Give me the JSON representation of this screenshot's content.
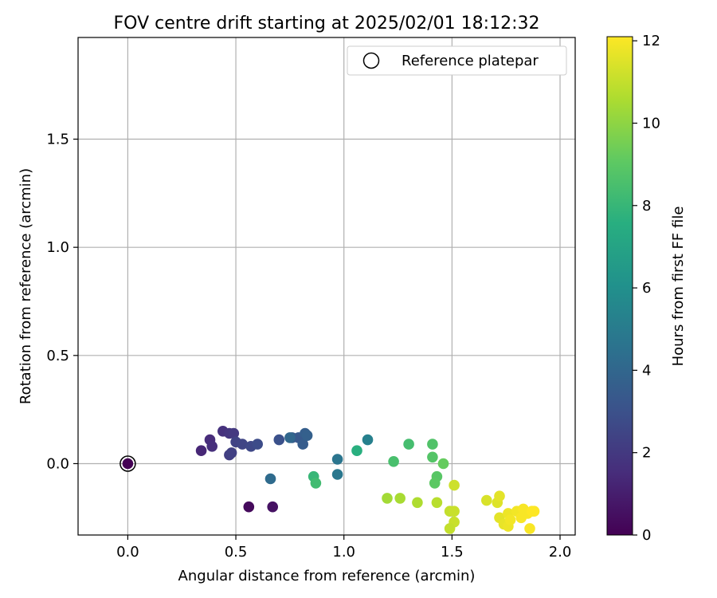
{
  "chart_data": {
    "type": "scatter",
    "title": "FOV centre drift starting at 2025/02/01 18:12:32",
    "xlabel": "Angular distance from reference (arcmin)",
    "ylabel": "Rotation from reference (arcmin)",
    "xlim": [
      -0.23,
      2.07
    ],
    "ylim": [
      -0.33,
      1.97
    ],
    "xticks": [
      0.0,
      0.5,
      1.0,
      1.5,
      2.0
    ],
    "xtick_labels": [
      "0.0",
      "0.5",
      "1.0",
      "1.5",
      "2.0"
    ],
    "yticks": [
      0.0,
      0.5,
      1.0,
      1.5
    ],
    "ytick_labels": [
      "0.0",
      "0.5",
      "1.0",
      "1.5"
    ],
    "grid": true,
    "legend": {
      "position": "top-right",
      "entries": [
        "Reference platepar"
      ]
    },
    "colorbar": {
      "label": "Hours from first FF file",
      "colormap": "viridis",
      "range": [
        0,
        12.1
      ],
      "ticks": [
        0,
        2,
        4,
        6,
        8,
        10,
        12
      ],
      "tick_labels": [
        "0",
        "2",
        "4",
        "6",
        "8",
        "10",
        "12"
      ]
    },
    "reference_point": {
      "x": 0.0,
      "y": 0.0
    },
    "points": [
      {
        "x": 0.0,
        "y": 0.0,
        "t": 0.0
      },
      {
        "x": 0.56,
        "y": -0.2,
        "t": 0.3
      },
      {
        "x": 0.67,
        "y": -0.2,
        "t": 0.6
      },
      {
        "x": 0.34,
        "y": 0.06,
        "t": 1.3
      },
      {
        "x": 0.38,
        "y": 0.11,
        "t": 1.5
      },
      {
        "x": 0.39,
        "y": 0.08,
        "t": 1.6
      },
      {
        "x": 0.44,
        "y": 0.15,
        "t": 1.7
      },
      {
        "x": 0.47,
        "y": 0.14,
        "t": 1.9
      },
      {
        "x": 0.49,
        "y": 0.14,
        "t": 2.0
      },
      {
        "x": 0.47,
        "y": 0.04,
        "t": 2.2
      },
      {
        "x": 0.48,
        "y": 0.05,
        "t": 2.3
      },
      {
        "x": 0.5,
        "y": 0.1,
        "t": 2.4
      },
      {
        "x": 0.53,
        "y": 0.09,
        "t": 2.5
      },
      {
        "x": 0.57,
        "y": 0.08,
        "t": 2.6
      },
      {
        "x": 0.6,
        "y": 0.09,
        "t": 2.8
      },
      {
        "x": 0.7,
        "y": 0.11,
        "t": 3.0
      },
      {
        "x": 0.76,
        "y": 0.12,
        "t": 3.4
      },
      {
        "x": 0.79,
        "y": 0.12,
        "t": 3.3
      },
      {
        "x": 0.81,
        "y": 0.09,
        "t": 3.5
      },
      {
        "x": 0.82,
        "y": 0.14,
        "t": 3.6
      },
      {
        "x": 0.83,
        "y": 0.13,
        "t": 3.7
      },
      {
        "x": 0.75,
        "y": 0.12,
        "t": 4.0
      },
      {
        "x": 0.66,
        "y": -0.07,
        "t": 4.2
      },
      {
        "x": 0.97,
        "y": 0.02,
        "t": 4.7
      },
      {
        "x": 0.97,
        "y": -0.05,
        "t": 4.8
      },
      {
        "x": 1.11,
        "y": 0.11,
        "t": 5.2
      },
      {
        "x": 1.06,
        "y": 0.06,
        "t": 7.6
      },
      {
        "x": 0.86,
        "y": -0.06,
        "t": 8.0
      },
      {
        "x": 0.87,
        "y": -0.09,
        "t": 8.3
      },
      {
        "x": 1.23,
        "y": 0.01,
        "t": 8.5
      },
      {
        "x": 1.3,
        "y": 0.09,
        "t": 8.4
      },
      {
        "x": 1.41,
        "y": 0.09,
        "t": 8.7
      },
      {
        "x": 1.41,
        "y": 0.03,
        "t": 8.8
      },
      {
        "x": 1.43,
        "y": -0.06,
        "t": 8.9
      },
      {
        "x": 1.42,
        "y": -0.09,
        "t": 9.0
      },
      {
        "x": 1.46,
        "y": 0.0,
        "t": 9.2
      },
      {
        "x": 1.2,
        "y": -0.16,
        "t": 10.4
      },
      {
        "x": 1.26,
        "y": -0.16,
        "t": 10.5
      },
      {
        "x": 1.34,
        "y": -0.18,
        "t": 10.6
      },
      {
        "x": 1.43,
        "y": -0.18,
        "t": 10.8
      },
      {
        "x": 1.49,
        "y": -0.22,
        "t": 11.0
      },
      {
        "x": 1.51,
        "y": -0.22,
        "t": 11.1
      },
      {
        "x": 1.51,
        "y": -0.27,
        "t": 11.1
      },
      {
        "x": 1.49,
        "y": -0.3,
        "t": 11.0
      },
      {
        "x": 1.51,
        "y": -0.1,
        "t": 11.2
      },
      {
        "x": 1.66,
        "y": -0.17,
        "t": 11.4
      },
      {
        "x": 1.71,
        "y": -0.18,
        "t": 11.5
      },
      {
        "x": 1.72,
        "y": -0.15,
        "t": 11.6
      },
      {
        "x": 1.72,
        "y": -0.25,
        "t": 11.6
      },
      {
        "x": 1.74,
        "y": -0.28,
        "t": 11.7
      },
      {
        "x": 1.76,
        "y": -0.23,
        "t": 11.8
      },
      {
        "x": 1.76,
        "y": -0.29,
        "t": 11.8
      },
      {
        "x": 1.77,
        "y": -0.26,
        "t": 11.9
      },
      {
        "x": 1.8,
        "y": -0.22,
        "t": 11.9
      },
      {
        "x": 1.82,
        "y": -0.25,
        "t": 12.0
      },
      {
        "x": 1.83,
        "y": -0.21,
        "t": 12.0
      },
      {
        "x": 1.85,
        "y": -0.23,
        "t": 12.0
      },
      {
        "x": 1.86,
        "y": -0.3,
        "t": 12.0
      },
      {
        "x": 1.87,
        "y": -0.22,
        "t": 12.1
      },
      {
        "x": 1.88,
        "y": -0.22,
        "t": 12.1
      }
    ]
  }
}
